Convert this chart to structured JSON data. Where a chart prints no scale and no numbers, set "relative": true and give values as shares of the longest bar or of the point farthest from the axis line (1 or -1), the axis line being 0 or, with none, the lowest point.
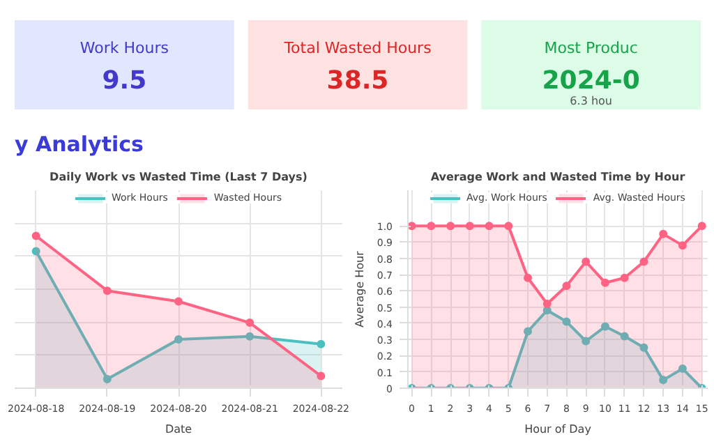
{
  "chart_data": [
    {
      "type": "other",
      "title": "y Analytics",
      "colors": [
        "#e0e7ff",
        "#fee2e2",
        "#dcfce7"
      ],
      "annotations": [
        "Work Hours",
        "9.5",
        "Total Wasted Hours",
        "38.5",
        "Most Produc",
        "2024-0",
        "6.3 hou"
      ]
    },
    {
      "type": "area",
      "title": "Daily Work vs Wasted Time (Last 7 Days)",
      "xlabel": "Date",
      "relative": true,
      "grid": true,
      "legend": "top",
      "marker": "circle",
      "categories": [
        "2024-08-18",
        "2024-08-19",
        "2024-08-20",
        "2024-08-21",
        "2024-08-22"
      ],
      "series": [
        {
          "name": "Work Hours",
          "color": "#4bc0c0",
          "values": [
            0.9,
            0.06,
            0.32,
            0.34,
            0.29
          ]
        },
        {
          "name": "Wasted Hours",
          "color": "#ff6384",
          "values": [
            1.0,
            0.64,
            0.57,
            0.43,
            0.08
          ]
        }
      ]
    },
    {
      "type": "area",
      "title": "Average Work and Wasted Time by Hour",
      "xlabel": "Hour of Day",
      "ylabel": "Average Hour",
      "grid": true,
      "legend": "top",
      "marker": "circle",
      "x": [
        0,
        1,
        2,
        3,
        4,
        5,
        6,
        7,
        8,
        9,
        10,
        11,
        12,
        13,
        14,
        15
      ],
      "xlim": [
        -0.2,
        15.3
      ],
      "xticks": [
        0,
        1,
        2,
        3,
        4,
        5,
        6,
        7,
        8,
        9,
        10,
        11,
        12,
        13,
        14,
        15
      ],
      "ylim": [
        0,
        1.22
      ],
      "yticks": [
        0,
        0.1,
        0.2,
        0.3,
        0.4,
        0.5,
        0.6,
        0.7,
        0.8,
        0.9,
        {
          "value": 1,
          "label": "1.0"
        }
      ],
      "series": [
        {
          "name": "Avg. Work Hours",
          "color": "#4bc0c0",
          "values": [
            0,
            0,
            0,
            0,
            0,
            0,
            0.35,
            0.48,
            0.41,
            0.29,
            0.38,
            0.32,
            0.25,
            0.05,
            0.12,
            0
          ]
        },
        {
          "name": "Avg. Wasted Hours",
          "color": "#ff6384",
          "values": [
            1,
            1,
            1,
            1,
            1,
            1,
            0.68,
            0.52,
            0.63,
            0.78,
            0.65,
            0.68,
            0.78,
            0.95,
            0.88,
            1.0
          ]
        }
      ]
    }
  ]
}
